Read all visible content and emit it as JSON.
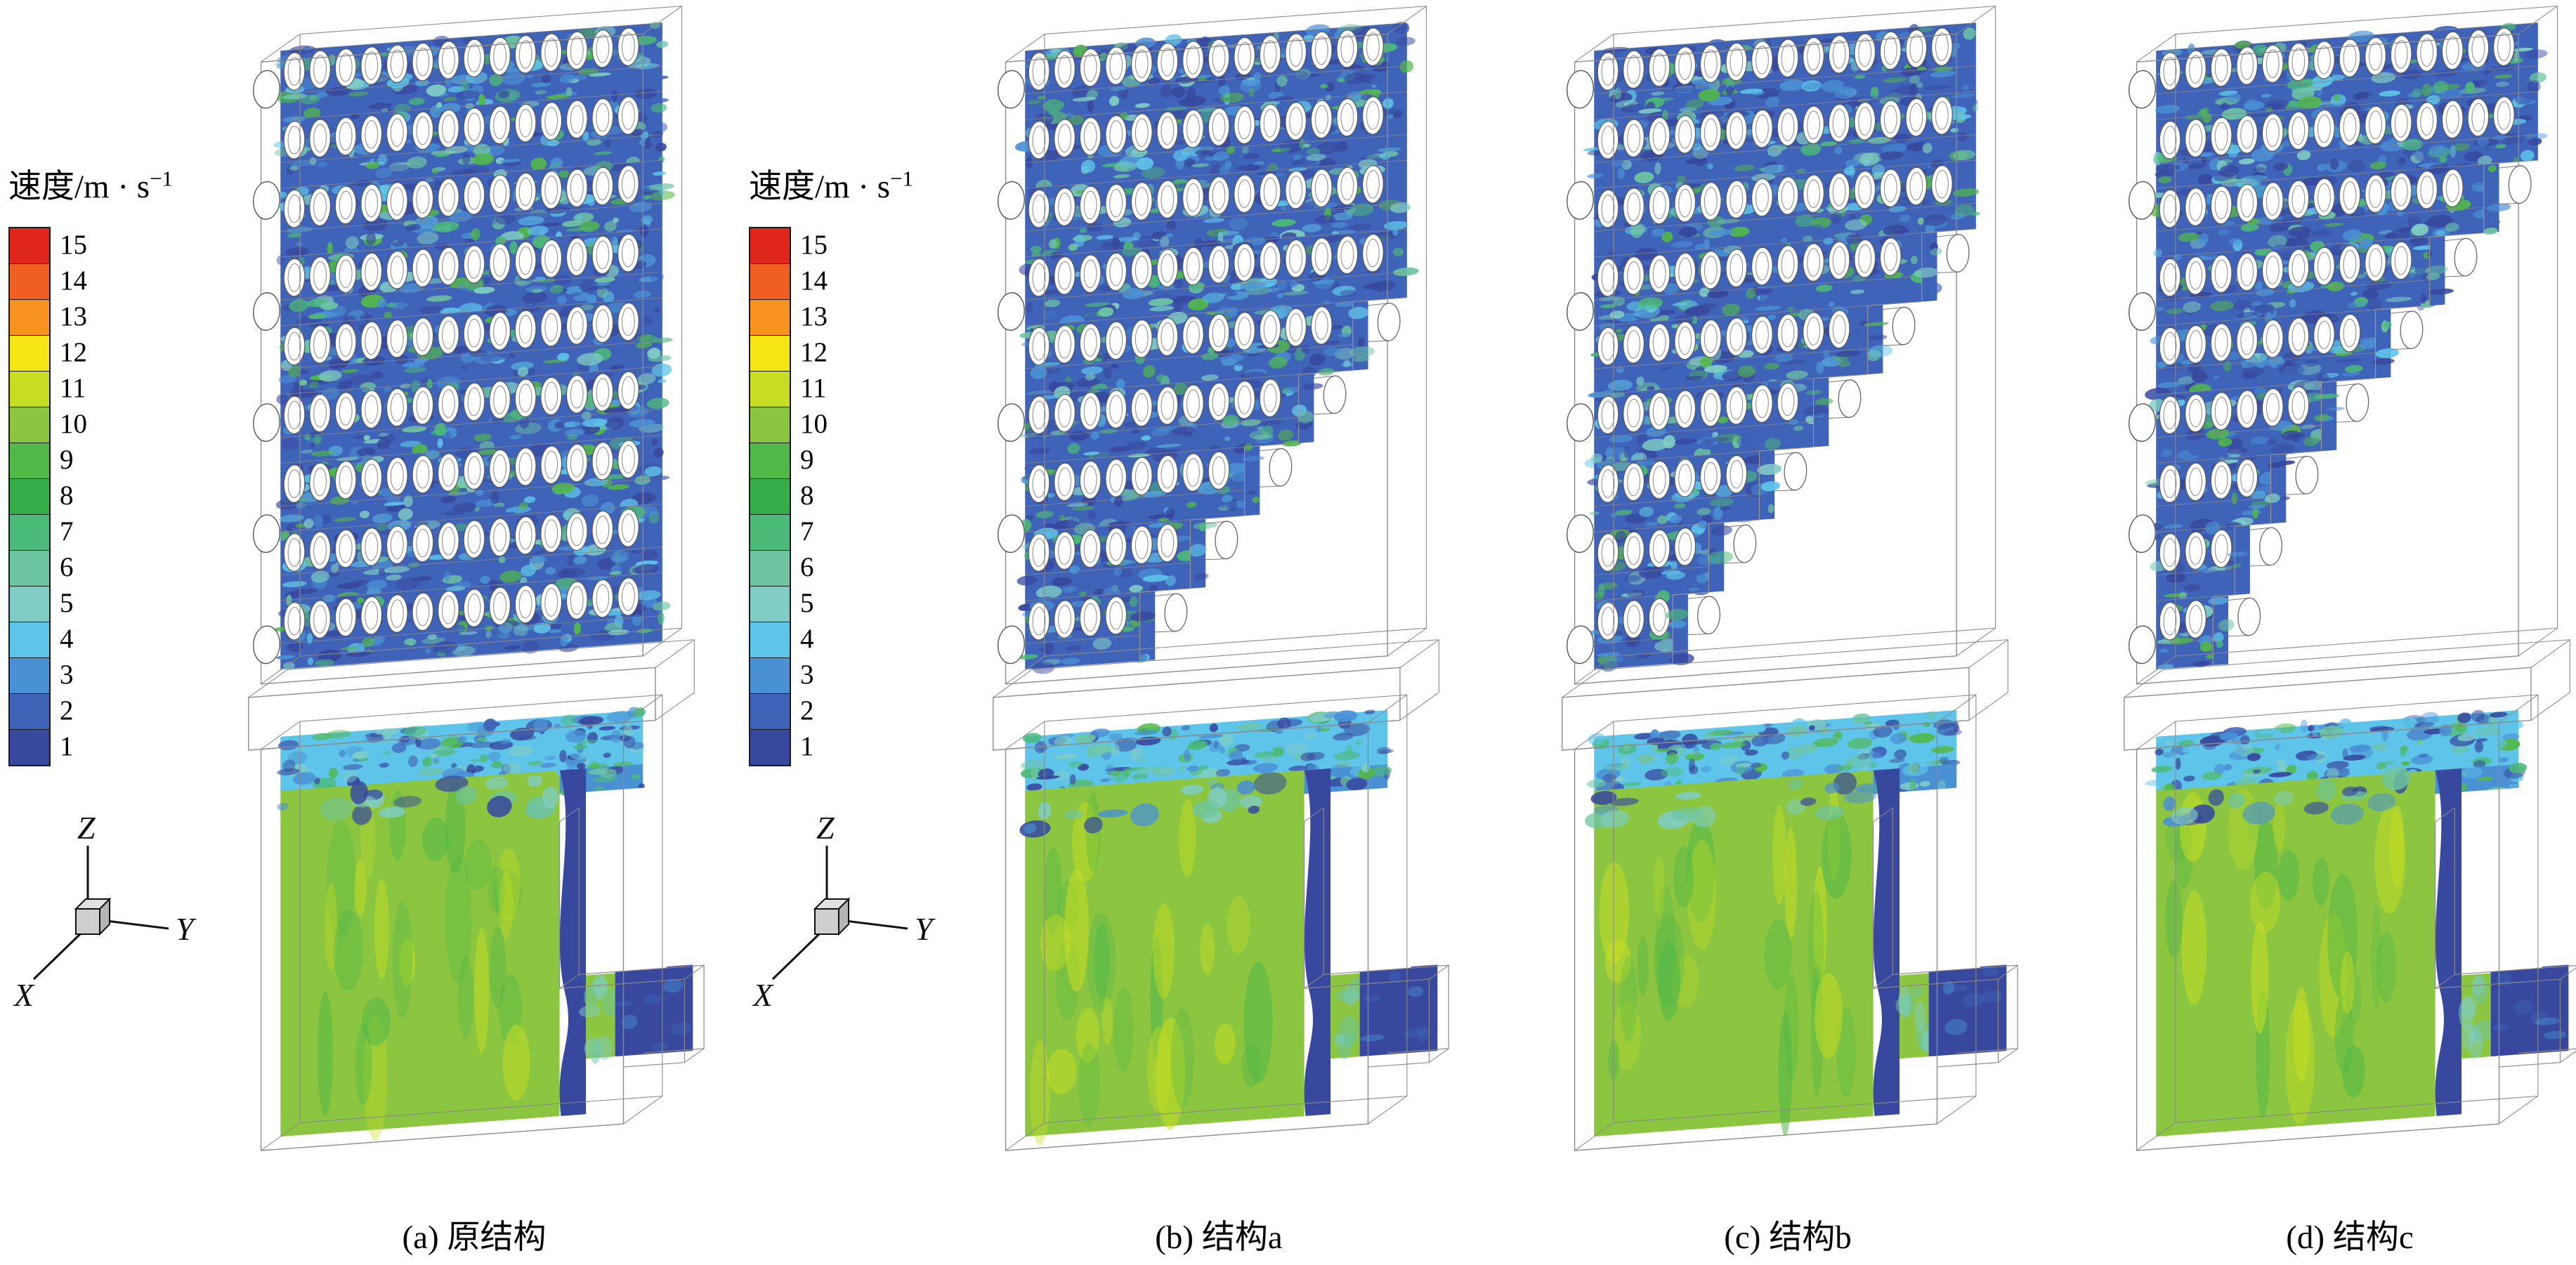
{
  "figure": {
    "background": "#ffffff",
    "wireframe_color": "#8a8a8a",
    "legend": {
      "title": "速度/m · s",
      "title_sup": "−1",
      "labels": [
        "15",
        "14",
        "13",
        "12",
        "11",
        "10",
        "9",
        "8",
        "7",
        "6",
        "5",
        "4",
        "3",
        "2",
        "1"
      ],
      "colors": [
        "#e0251c",
        "#ef5e23",
        "#f79420",
        "#f5e514",
        "#c6dd23",
        "#8cc540",
        "#52b848",
        "#37ad4a",
        "#4cba78",
        "#6ec5a2",
        "#80cdc5",
        "#5fc4e9",
        "#4a90d5",
        "#3f63b8",
        "#37489e"
      ]
    },
    "axis_triad": {
      "x": "X",
      "y": "Y",
      "z": "Z"
    },
    "panels": [
      {
        "id": "a",
        "caption": "(a) 原结构",
        "row_cuts": [
          0,
          0,
          0,
          0,
          0,
          0,
          0,
          0,
          0
        ],
        "seed": 11
      },
      {
        "id": "b",
        "caption": "(b) 结构a",
        "row_cuts": [
          0,
          0,
          0,
          0,
          0.15,
          0.3,
          0.45,
          0.6,
          0.74
        ],
        "seed": 23
      },
      {
        "id": "c",
        "caption": "(c) 结构b",
        "row_cuts": [
          0,
          0,
          0,
          0.15,
          0.3,
          0.45,
          0.6,
          0.74,
          0.84
        ],
        "seed": 37
      },
      {
        "id": "d",
        "caption": "(d) 结构c",
        "row_cuts": [
          0,
          0,
          0.15,
          0.3,
          0.45,
          0.6,
          0.74,
          0.84,
          0.9
        ],
        "seed": 51
      }
    ]
  },
  "chart_data": {
    "type": "heatmap",
    "subtype": "CFD velocity contour slices, 4-panel comparison of tube-bank structures",
    "colorbar": {
      "label": "速度/m·s⁻¹",
      "units": "m/s",
      "levels": [
        15,
        14,
        13,
        12,
        11,
        10,
        9,
        8,
        7,
        6,
        5,
        4,
        3,
        2,
        1
      ],
      "colors": [
        "#e0251c",
        "#ef5e23",
        "#f79420",
        "#f5e514",
        "#c6dd23",
        "#8cc540",
        "#52b848",
        "#37ad4a",
        "#4cba78",
        "#6ec5a2",
        "#80cdc5",
        "#5fc4e9",
        "#4a90d5",
        "#3f63b8",
        "#37489e"
      ],
      "orientation": "vertical",
      "position": "left of panels a and b"
    },
    "axes_triad": [
      "X",
      "Y",
      "Z"
    ],
    "panels": [
      {
        "label": "(a) 原结构",
        "description": "original structure: full tube bank, velocity ~1-5 m/s in bank, ~8-10 m/s green jet in lower inlet box"
      },
      {
        "label": "(b) 结构a",
        "description": "stepped cut of tube bank starting ~row 5, stair-step white gaps on right side"
      },
      {
        "label": "(c) 结构b",
        "description": "stepped cut starting ~row 4, larger stair-step region"
      },
      {
        "label": "(d) 结构c",
        "description": "stepped cut starting ~row 3, largest stair-step region"
      }
    ],
    "legend_on_panels": "two identical colorbars shown, one before panel a and one before panel b"
  }
}
